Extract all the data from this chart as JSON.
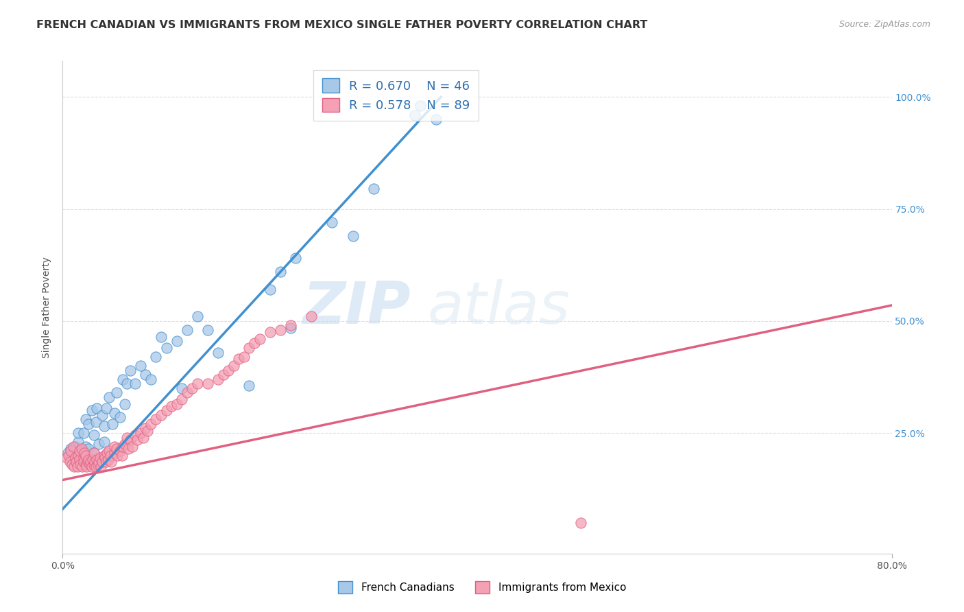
{
  "title": "FRENCH CANADIAN VS IMMIGRANTS FROM MEXICO SINGLE FATHER POVERTY CORRELATION CHART",
  "source": "Source: ZipAtlas.com",
  "ylabel": "Single Father Poverty",
  "xlim": [
    0.0,
    0.8
  ],
  "ylim": [
    -0.02,
    1.08
  ],
  "color_blue": "#a8c8e8",
  "color_pink": "#f4a0b5",
  "color_blue_line": "#4090d0",
  "color_pink_line": "#e06080",
  "watermark_zip": "ZIP",
  "watermark_atlas": "atlas",
  "blue_scatter_x": [
    0.005,
    0.008,
    0.01,
    0.012,
    0.015,
    0.015,
    0.018,
    0.02,
    0.02,
    0.022,
    0.022,
    0.025,
    0.025,
    0.028,
    0.03,
    0.03,
    0.032,
    0.033,
    0.035,
    0.038,
    0.04,
    0.04,
    0.042,
    0.045,
    0.048,
    0.05,
    0.052,
    0.055,
    0.058,
    0.06,
    0.062,
    0.065,
    0.07,
    0.075,
    0.08,
    0.085,
    0.09,
    0.095,
    0.1,
    0.11,
    0.115,
    0.12,
    0.13,
    0.14,
    0.15,
    0.18,
    0.2,
    0.21,
    0.22,
    0.225,
    0.26,
    0.28,
    0.3,
    0.34,
    0.345,
    0.36
  ],
  "blue_scatter_y": [
    0.205,
    0.215,
    0.19,
    0.22,
    0.23,
    0.25,
    0.2,
    0.21,
    0.25,
    0.22,
    0.28,
    0.215,
    0.27,
    0.3,
    0.205,
    0.245,
    0.275,
    0.305,
    0.225,
    0.29,
    0.23,
    0.265,
    0.305,
    0.33,
    0.27,
    0.295,
    0.34,
    0.285,
    0.37,
    0.315,
    0.36,
    0.39,
    0.36,
    0.4,
    0.38,
    0.37,
    0.42,
    0.465,
    0.44,
    0.455,
    0.35,
    0.48,
    0.51,
    0.48,
    0.43,
    0.355,
    0.57,
    0.61,
    0.485,
    0.64,
    0.72,
    0.69,
    0.795,
    0.96,
    0.98,
    0.95
  ],
  "pink_scatter_x": [
    0.004,
    0.006,
    0.007,
    0.008,
    0.009,
    0.01,
    0.011,
    0.012,
    0.013,
    0.014,
    0.015,
    0.016,
    0.016,
    0.017,
    0.018,
    0.019,
    0.02,
    0.02,
    0.021,
    0.022,
    0.022,
    0.023,
    0.024,
    0.025,
    0.026,
    0.027,
    0.028,
    0.029,
    0.03,
    0.03,
    0.031,
    0.032,
    0.033,
    0.034,
    0.035,
    0.036,
    0.037,
    0.038,
    0.04,
    0.041,
    0.042,
    0.043,
    0.044,
    0.045,
    0.046,
    0.047,
    0.05,
    0.05,
    0.052,
    0.053,
    0.055,
    0.057,
    0.058,
    0.06,
    0.062,
    0.063,
    0.065,
    0.067,
    0.07,
    0.072,
    0.075,
    0.078,
    0.08,
    0.082,
    0.085,
    0.09,
    0.095,
    0.1,
    0.105,
    0.11,
    0.115,
    0.12,
    0.125,
    0.13,
    0.14,
    0.15,
    0.155,
    0.16,
    0.165,
    0.17,
    0.175,
    0.18,
    0.185,
    0.19,
    0.2,
    0.21,
    0.22,
    0.24,
    0.5
  ],
  "pink_scatter_y": [
    0.195,
    0.2,
    0.185,
    0.21,
    0.18,
    0.22,
    0.175,
    0.195,
    0.185,
    0.175,
    0.2,
    0.19,
    0.21,
    0.18,
    0.215,
    0.175,
    0.195,
    0.185,
    0.205,
    0.18,
    0.2,
    0.175,
    0.185,
    0.19,
    0.18,
    0.185,
    0.175,
    0.19,
    0.18,
    0.205,
    0.185,
    0.175,
    0.19,
    0.18,
    0.185,
    0.195,
    0.175,
    0.185,
    0.2,
    0.195,
    0.185,
    0.205,
    0.19,
    0.21,
    0.2,
    0.185,
    0.205,
    0.22,
    0.215,
    0.2,
    0.21,
    0.2,
    0.22,
    0.225,
    0.24,
    0.215,
    0.235,
    0.22,
    0.245,
    0.235,
    0.25,
    0.24,
    0.26,
    0.255,
    0.27,
    0.28,
    0.29,
    0.3,
    0.31,
    0.315,
    0.325,
    0.34,
    0.35,
    0.36,
    0.36,
    0.37,
    0.38,
    0.39,
    0.4,
    0.415,
    0.42,
    0.44,
    0.45,
    0.46,
    0.475,
    0.48,
    0.49,
    0.51,
    0.05
  ],
  "blue_line_x": [
    0.0,
    0.365
  ],
  "blue_line_y": [
    0.08,
    1.0
  ],
  "pink_line_x": [
    0.0,
    0.8
  ],
  "pink_line_y": [
    0.145,
    0.535
  ],
  "grid_color": "#dddddd",
  "bg_color": "#ffffff",
  "title_fontsize": 11.5,
  "axis_label_fontsize": 10,
  "tick_fontsize": 10,
  "legend_fontsize": 13
}
